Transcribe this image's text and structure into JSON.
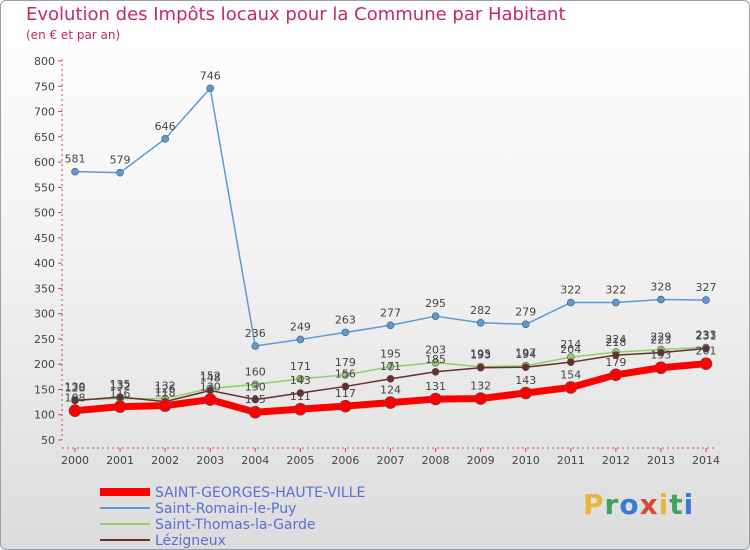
{
  "chart_data": {
    "type": "line",
    "title": "Evolution des Impôts locaux pour la Commune par Habitant",
    "subtitle": "(en € et par an)",
    "xlabel": "",
    "ylabel": "",
    "x": [
      "2000",
      "2001",
      "2002",
      "2003",
      "2004",
      "2005",
      "2006",
      "2007",
      "2008",
      "2009",
      "2010",
      "2011",
      "2012",
      "2013",
      "2014"
    ],
    "ylim": [
      50,
      800
    ],
    "yticks": [
      50,
      100,
      150,
      200,
      250,
      300,
      350,
      400,
      450,
      500,
      550,
      600,
      650,
      700,
      750,
      800
    ],
    "grid": false,
    "legend_position": "bottom-left",
    "series": [
      {
        "name": "Saint-Romain-le-Puy",
        "color": "#5a9bd5",
        "width": 1.5,
        "values": [
          581,
          579,
          646,
          746,
          236,
          249,
          263,
          277,
          295,
          282,
          279,
          322,
          322,
          328,
          327
        ]
      },
      {
        "name": "Saint-Thomas-la-Garde",
        "color": "#8fd06a",
        "width": 1.5,
        "values": [
          130,
          132,
          132,
          152,
          160,
          171,
          179,
          195,
          203,
          195,
          197,
          214,
          224,
          229,
          233
        ]
      },
      {
        "name": "Lézigneux",
        "color": "#6b2c2c",
        "width": 1.5,
        "values": [
          128,
          135,
          126,
          148,
          130,
          143,
          156,
          171,
          185,
          193,
          194,
          204,
          218,
          223,
          231
        ]
      },
      {
        "name": "SAINT-GEORGES-HAUTE-VILLE",
        "color": "#ff0000",
        "width": 7,
        "values": [
          108,
          116,
          118,
          130,
          105,
          111,
          117,
          124,
          131,
          132,
          143,
          154,
          179,
          193,
          201
        ]
      }
    ],
    "data_labels": {
      "Saint-Romain-le-Puy": [
        "581",
        "579",
        "646",
        "746",
        "236",
        "249",
        "263",
        "277",
        "295",
        "282",
        "279",
        "322",
        "322",
        "328",
        "327"
      ],
      "Saint-Thomas-la-Garde": [
        "130",
        "132",
        "132",
        "152",
        "160",
        "171",
        "179",
        "195",
        "203",
        "195",
        "197",
        "214",
        "224",
        "229",
        "233"
      ],
      "Lézigneux": [
        "128",
        "135",
        "126",
        "148",
        "130",
        "143",
        "156",
        "171",
        "185",
        "193",
        "194",
        "204",
        "218",
        "223",
        "231"
      ],
      "SAINT-GEORGES-HAUTE-VILLE": [
        "108",
        "116",
        "118",
        "130",
        "105",
        "111",
        "117",
        "124",
        "131",
        "132",
        "143",
        "154",
        "179",
        "193",
        "201"
      ]
    },
    "legend_order": [
      "SAINT-GEORGES-HAUTE-VILLE",
      "Saint-Romain-le-Puy",
      "Saint-Thomas-la-Garde",
      "Lézigneux"
    ]
  },
  "branding": {
    "logo_letters": [
      "P",
      "r",
      "o",
      "x",
      "i",
      "t",
      "i"
    ],
    "logo_colors": [
      "c0",
      "c1",
      "c2",
      "c3",
      "c0",
      "c1",
      "c2"
    ]
  }
}
